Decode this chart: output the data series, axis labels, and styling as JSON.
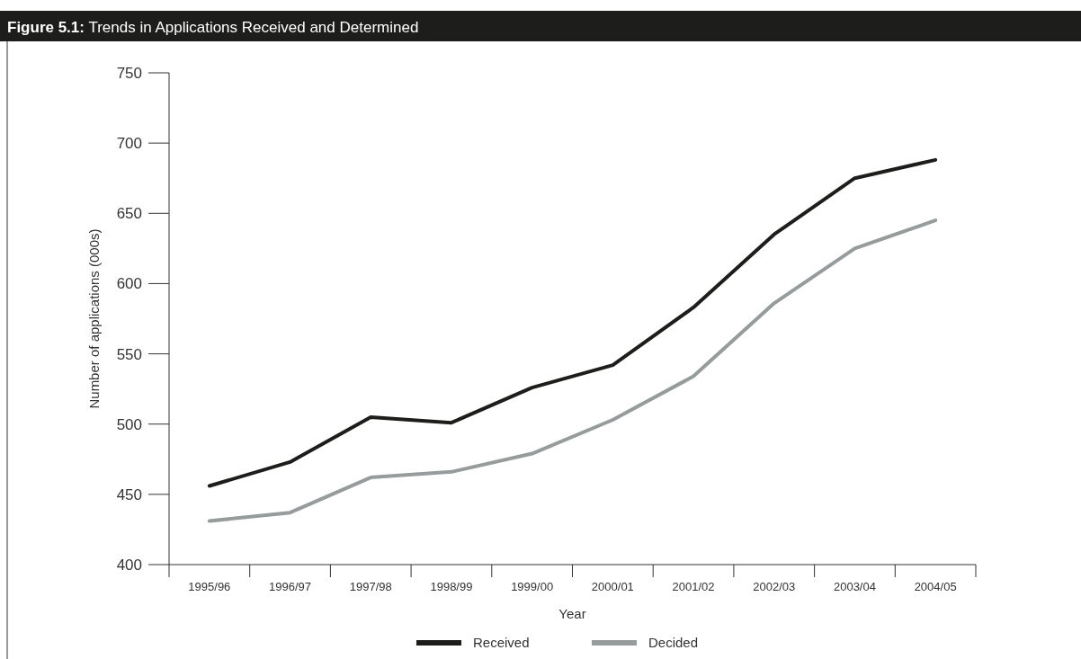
{
  "chart_data": {
    "type": "line",
    "title": "Figure 5.1:",
    "subtitle": "Trends in Applications Received and Determined",
    "xlabel": "Year",
    "ylabel": "Number of applications (000s)",
    "categories": [
      "1995/96",
      "1996/97",
      "1997/98",
      "1998/99",
      "1999/00",
      "2000/01",
      "2001/02",
      "2002/03",
      "2003/04",
      "2004/05"
    ],
    "series": [
      {
        "name": "Received",
        "color": "#1d1d1b",
        "values": [
          456,
          473,
          505,
          501,
          526,
          542,
          583,
          635,
          675,
          688
        ]
      },
      {
        "name": "Decided",
        "color": "#969b9b",
        "values": [
          431,
          437,
          462,
          466,
          479,
          503,
          534,
          586,
          625,
          645
        ]
      }
    ],
    "ylim": [
      400,
      750
    ],
    "yticks": [
      400,
      450,
      500,
      550,
      600,
      650,
      700,
      750
    ],
    "grid": false,
    "legend": "bottom",
    "marker": "none",
    "line_style": "solid"
  }
}
